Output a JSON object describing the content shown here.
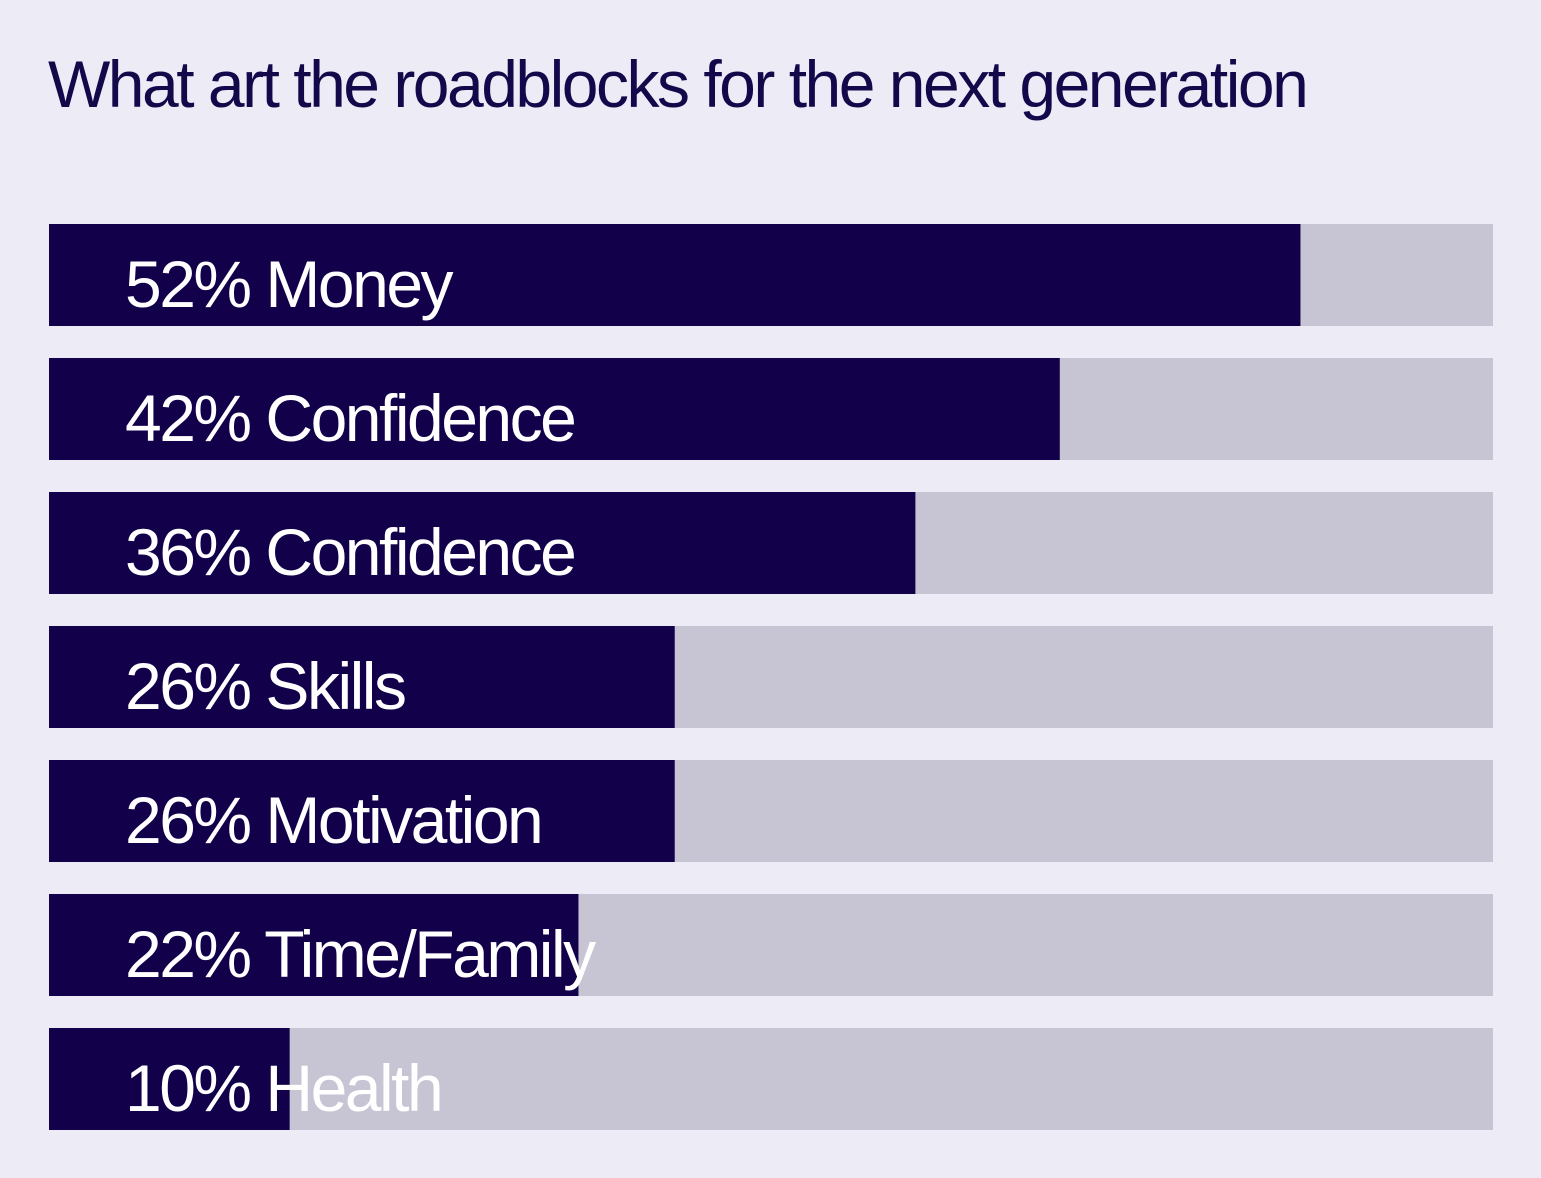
{
  "chart_data": {
    "type": "bar",
    "orientation": "horizontal",
    "title": "What art the roadblocks for the next generation",
    "categories": [
      "Money",
      "Confidence",
      "Confidence",
      "Skills",
      "Motivation",
      "Time/Family",
      "Health"
    ],
    "values": [
      52,
      42,
      36,
      26,
      26,
      22,
      10
    ],
    "labels": [
      "52% Money",
      "42% Confidence",
      "36%  Confidence",
      "26% Skills",
      "26% Motivation",
      "22% Time/Family",
      "10% Health"
    ],
    "unit": "%",
    "xlim": [
      0,
      60
    ],
    "grid": false,
    "legend": "none",
    "colors": {
      "background": "#ecebf6",
      "bar": "#12004a",
      "track": "#c7c5d4",
      "label": "#ffffff",
      "title": "#12084a"
    }
  }
}
